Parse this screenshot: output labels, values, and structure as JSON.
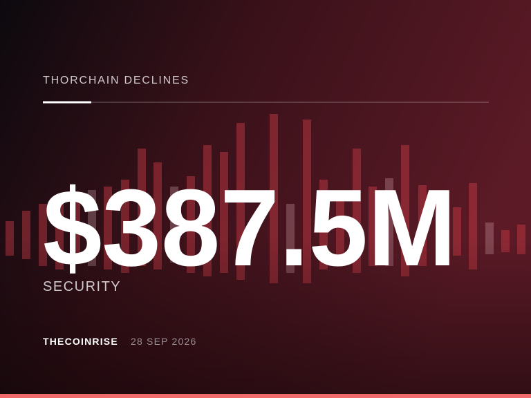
{
  "header": {
    "kicker": "THORCHAIN DECLINES"
  },
  "headline": "$387.5M",
  "subtitle": "SECURITY",
  "footer": {
    "brand": "THECOINRISE",
    "date": "28 SEP 2026"
  }
}
